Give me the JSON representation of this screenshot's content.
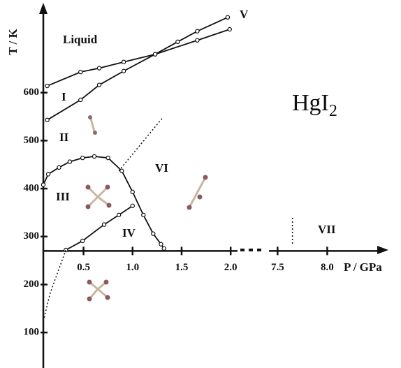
{
  "chart_data": {
    "type": "phase-diagram",
    "y_label": "T / K",
    "x_label": "P / GPa",
    "ylim": [
      26,
      780
    ],
    "yticks": [
      100,
      200,
      300,
      400,
      500,
      600
    ],
    "x_axis_at": 270,
    "x_segments": [
      {
        "xlim": [
          0.09,
          2.07
        ],
        "xticks": [
          0.5,
          {
            "value": 1,
            "label": "1.0"
          },
          1.5,
          {
            "value": 2,
            "label": "2.0"
          }
        ]
      },
      {
        "xlim": [
          7.35,
          8.56
        ],
        "xticks": [
          7.5,
          {
            "value": 8,
            "label": "8.0"
          }
        ]
      }
    ],
    "color": "#111111",
    "series": [
      {
        "segment": 0,
        "dashed": false,
        "markers": true,
        "x": [
          0.13,
          0.47,
          0.66,
          0.91,
          1.23,
          1.66,
          1.99
        ],
        "y": [
          614,
          643,
          651,
          664,
          680,
          709,
          732
        ]
      },
      {
        "segment": 0,
        "dashed": false,
        "markers": true,
        "x": [
          0.13,
          0.47,
          0.66,
          0.91,
          1.23,
          1.46,
          1.66,
          1.97
        ],
        "y": [
          543,
          585,
          616,
          645,
          680,
          706,
          728,
          757
        ]
      },
      {
        "segment": 0,
        "dashed": false,
        "markers": true,
        "x": [
          0.09,
          0.14,
          0.25,
          0.36,
          0.49,
          0.61,
          0.75,
          0.89,
          1.0,
          1.11,
          1.21,
          1.29,
          1.32
        ],
        "y": [
          408,
          430,
          444,
          456,
          464,
          467,
          464,
          437,
          393,
          345,
          306,
          284,
          275
        ]
      },
      {
        "segment": 0,
        "dashed": false,
        "markers": true,
        "x": [
          0.32,
          0.49,
          0.71,
          0.86,
          1.0
        ],
        "y": [
          272,
          291,
          325,
          345,
          364
        ]
      },
      {
        "segment": 0,
        "dashed": true,
        "markers": false,
        "x": [
          0.09,
          0.16,
          0.25,
          0.32
        ],
        "y": [
          124,
          182,
          233,
          272
        ]
      },
      {
        "segment": 0,
        "dashed": true,
        "markers": false,
        "x": [
          0.86,
          1.3
        ],
        "y": [
          437,
          546
        ]
      },
      {
        "segment": 1,
        "dashed": true,
        "markers": false,
        "x": [
          7.65,
          7.65
        ],
        "y": [
          339,
          284
        ]
      }
    ],
    "phase_labels": [
      "Liquid",
      "I",
      "II",
      "III",
      "IV",
      "V",
      "VI",
      "VII"
    ],
    "formula": {
      "text": "HgI",
      "subscript": "2"
    }
  }
}
